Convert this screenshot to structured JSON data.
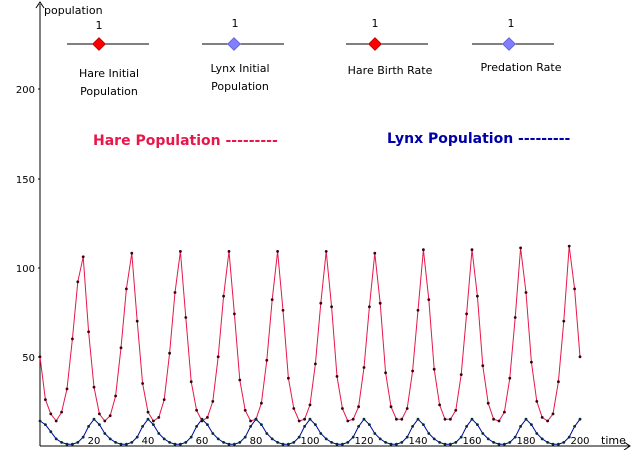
{
  "axes": {
    "y_label": "population",
    "x_label": "time",
    "y_ticks": [
      "50",
      "100",
      "150",
      "200"
    ],
    "x_ticks": [
      "20",
      "40",
      "60",
      "80",
      "100",
      "120",
      "140",
      "160",
      "180",
      "200"
    ]
  },
  "sliders": [
    {
      "label_line1": "Hare Initial",
      "label_line2": "Population",
      "value": "1",
      "knob": "red-diamond"
    },
    {
      "label_line1": "Lynx Initial",
      "label_line2": "Population",
      "value": "1",
      "knob": "blue-diamond"
    },
    {
      "label_line1": "Hare Birth Rate",
      "label_line2": "",
      "value": "1",
      "knob": "red-diamond"
    },
    {
      "label_line1": "Predation Rate",
      "label_line2": "",
      "value": "1",
      "knob": "blue-diamond"
    }
  ],
  "legend": {
    "hare": "Hare Population ---------",
    "lynx": "Lynx Population ---------"
  },
  "colors": {
    "hare": "#e8174a",
    "lynx": "#0000a8",
    "slider_red": "#ff0000",
    "slider_blue": "#8080ff"
  },
  "chart_data": {
    "type": "line",
    "xlim": [
      0,
      205
    ],
    "ylim": [
      0,
      230
    ],
    "series": [
      {
        "name": "Hare Population",
        "x": [
          0,
          2,
          4,
          6,
          8,
          10,
          12,
          14,
          16,
          18,
          20,
          22,
          24,
          26,
          28,
          30,
          32,
          34,
          36,
          38,
          40,
          42,
          44,
          46,
          48,
          50,
          52,
          54,
          56,
          58,
          60,
          62,
          64,
          66,
          68,
          70,
          72,
          74,
          76,
          78,
          80,
          82,
          84,
          86,
          88,
          90,
          92,
          94,
          96,
          98,
          100,
          102,
          104,
          106,
          108,
          110,
          112,
          114,
          116,
          118,
          120,
          122,
          124,
          126,
          128,
          130,
          132,
          134,
          136,
          138,
          140,
          142,
          144,
          146,
          148,
          150,
          152,
          154,
          156,
          158,
          160,
          162,
          164,
          166,
          168,
          170,
          172,
          174,
          176,
          178,
          180,
          182,
          184,
          186,
          188,
          190,
          192,
          194,
          196,
          198,
          200
        ],
        "values": [
          50,
          26,
          18,
          14,
          19,
          32,
          60,
          92,
          106,
          64,
          33,
          18,
          14,
          17,
          28,
          55,
          88,
          108,
          70,
          35,
          19,
          14,
          16,
          26,
          52,
          86,
          109,
          72,
          36,
          20,
          14,
          16,
          25,
          50,
          84,
          109,
          74,
          37,
          20,
          14,
          15,
          24,
          48,
          82,
          109,
          76,
          38,
          21,
          14,
          15,
          23,
          46,
          80,
          109,
          78,
          39,
          21,
          14,
          15,
          22,
          44,
          78,
          108,
          80,
          41,
          22,
          15,
          15,
          21,
          42,
          76,
          110,
          82,
          43,
          23,
          15,
          15,
          20,
          40,
          74,
          110,
          84,
          45,
          24,
          15,
          14,
          19,
          38,
          72,
          111,
          86,
          47,
          25,
          16,
          14,
          18,
          36,
          70,
          112,
          88,
          50
        ]
      },
      {
        "name": "Lynx Population",
        "x": [
          0,
          2,
          4,
          6,
          8,
          10,
          12,
          14,
          16,
          18,
          20,
          22,
          24,
          26,
          28,
          30,
          32,
          34,
          36,
          38,
          40,
          42,
          44,
          46,
          48,
          50,
          52,
          54,
          56,
          58,
          60,
          62,
          64,
          66,
          68,
          70,
          72,
          74,
          76,
          78,
          80,
          82,
          84,
          86,
          88,
          90,
          92,
          94,
          96,
          98,
          100,
          102,
          104,
          106,
          108,
          110,
          112,
          114,
          116,
          118,
          120,
          122,
          124,
          126,
          128,
          130,
          132,
          134,
          136,
          138,
          140,
          142,
          144,
          146,
          148,
          150,
          152,
          154,
          156,
          158,
          160,
          162,
          164,
          166,
          168,
          170,
          172,
          174,
          176,
          178,
          180,
          182,
          184,
          186,
          188,
          190,
          192,
          194,
          196,
          198,
          200
        ],
        "values": [
          14,
          12,
          8,
          4,
          2,
          1,
          1,
          2,
          5,
          11,
          15,
          12,
          7,
          4,
          2,
          1,
          1,
          2,
          5,
          11,
          15,
          12,
          7,
          4,
          2,
          1,
          1,
          2,
          5,
          11,
          15,
          12,
          7,
          4,
          2,
          1,
          1,
          2,
          5,
          11,
          15,
          12,
          7,
          4,
          2,
          1,
          1,
          2,
          5,
          11,
          15,
          12,
          7,
          4,
          2,
          1,
          1,
          2,
          5,
          11,
          15,
          12,
          7,
          4,
          2,
          1,
          1,
          2,
          5,
          11,
          15,
          12,
          7,
          4,
          2,
          1,
          1,
          2,
          5,
          11,
          15,
          12,
          7,
          4,
          2,
          1,
          1,
          2,
          5,
          11,
          15,
          12,
          7,
          4,
          2,
          1,
          1,
          2,
          5,
          11,
          15
        ]
      }
    ],
    "xlabel": "time",
    "ylabel": "population",
    "grid": false
  }
}
